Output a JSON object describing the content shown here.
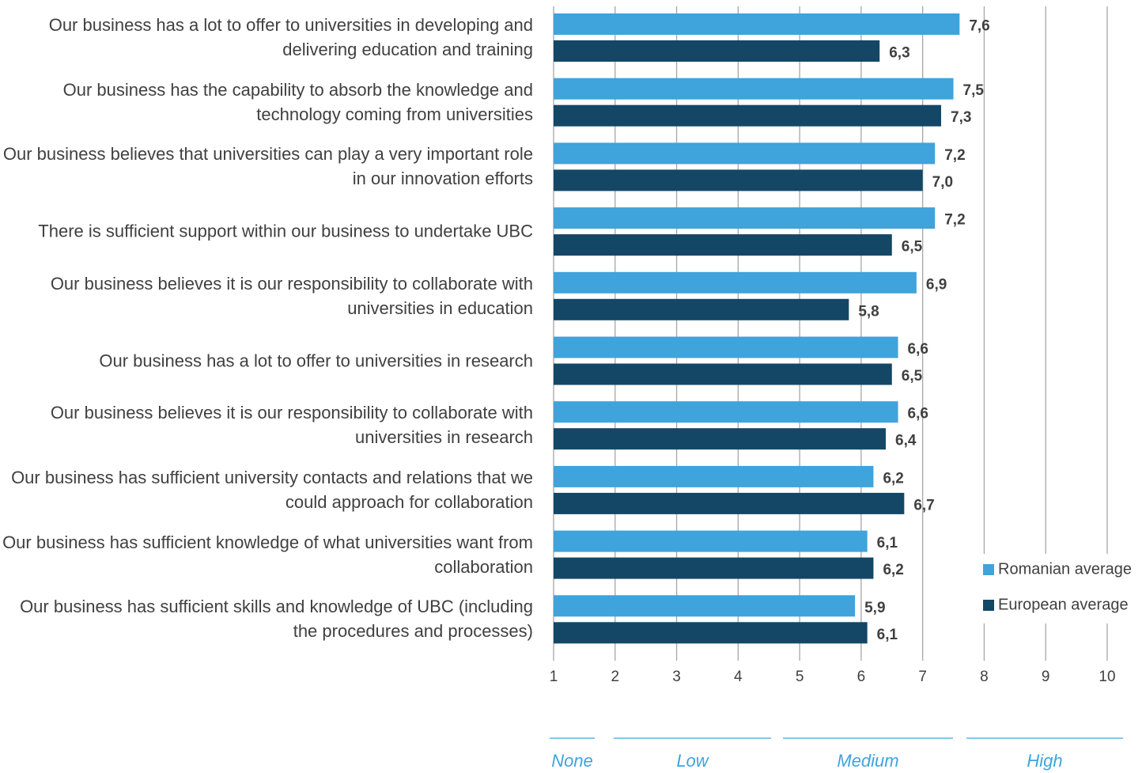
{
  "chart_data": {
    "type": "bar",
    "orientation": "horizontal",
    "categories": [
      "Our business has a lot to offer to universities in developing and delivering education and training",
      "Our business has the capability to absorb the knowledge and technology coming from universities",
      "Our business believes that universities can play a very important role in our innovation efforts",
      "There is sufficient support within our business to undertake UBC",
      "Our business believes it is our responsibility to collaborate with universities in education",
      "Our business has a lot to offer to universities in research",
      "Our business believes it is our responsibility to  collaborate with universities in research",
      "Our business has sufficient university contacts and relations that we could approach for collaboration",
      "Our business has sufficient knowledge of what universities want from collaboration",
      "Our business has sufficient skills and knowledge of UBC (including the procedures and processes)"
    ],
    "series": [
      {
        "name": "Romanian average",
        "color": "#3fa3dc",
        "values": [
          7.6,
          7.5,
          7.2,
          7.2,
          6.9,
          6.6,
          6.6,
          6.2,
          6.1,
          5.9
        ],
        "value_labels": [
          "7,6",
          "7,5",
          "7,2",
          "7,2",
          "6,9",
          "6,6",
          "6,6",
          "6,2",
          "6,1",
          "5,9"
        ]
      },
      {
        "name": "European average",
        "color": "#144766",
        "values": [
          6.3,
          7.3,
          7.0,
          6.5,
          5.8,
          6.5,
          6.4,
          6.7,
          6.2,
          6.1
        ],
        "value_labels": [
          "6,3",
          "7,3",
          "7,0",
          "6,5",
          "5,8",
          "6,5",
          "6,4",
          "6,7",
          "6,2",
          "6,1"
        ]
      }
    ],
    "xlim": [
      1,
      10
    ],
    "xticks": [
      1,
      2,
      3,
      4,
      5,
      6,
      7,
      8,
      9,
      10
    ],
    "grid": true,
    "legend": "right",
    "scale_labels": [
      "None",
      "Low",
      "Medium",
      "High"
    ]
  }
}
